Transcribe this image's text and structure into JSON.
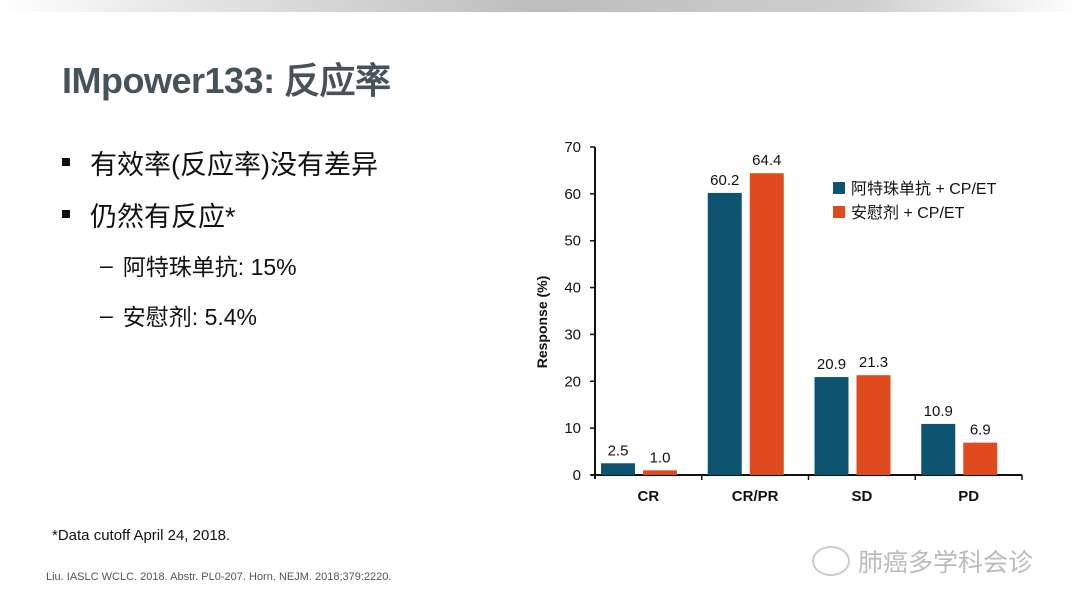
{
  "title": "IMpower133: 反应率",
  "bullets": [
    {
      "text": "有效率(反应率)没有差异",
      "level": 1
    },
    {
      "text": "仍然有反应*",
      "level": 1
    },
    {
      "text": "阿特珠单抗: 15%",
      "level": 2
    },
    {
      "text": "安慰剂: 5.4%",
      "level": 2
    }
  ],
  "sub_bullet_marker": "–",
  "footnote": "*Data cutoff April 24, 2018.",
  "reference": "Liu. IASLC WCLC. 2018. Abstr. PL0-207. Horn. NEJM. 2018;379:2220.",
  "watermark": "肺癌多学科会诊",
  "chart_data": {
    "type": "bar",
    "title": "",
    "xlabel": "",
    "ylabel": "Response (%)",
    "ylim": [
      0,
      70
    ],
    "yticks": [
      0,
      10,
      20,
      30,
      40,
      50,
      60,
      70
    ],
    "categories": [
      "CR",
      "CR/PR",
      "SD",
      "PD"
    ],
    "series": [
      {
        "name": "阿特珠单抗 + CP/ET",
        "color": "#0e5470",
        "values": [
          2.5,
          60.2,
          20.9,
          10.9
        ],
        "labels": [
          "2.5",
          "60.2",
          "20.9",
          "10.9"
        ]
      },
      {
        "name": "安慰剂 + CP/ET",
        "color": "#e04a1f",
        "values": [
          1.0,
          64.4,
          21.3,
          6.9
        ],
        "labels": [
          "1.0",
          "64.4",
          "21.3",
          "6.9"
        ]
      }
    ],
    "legend_position": "top-right",
    "grid": false
  }
}
